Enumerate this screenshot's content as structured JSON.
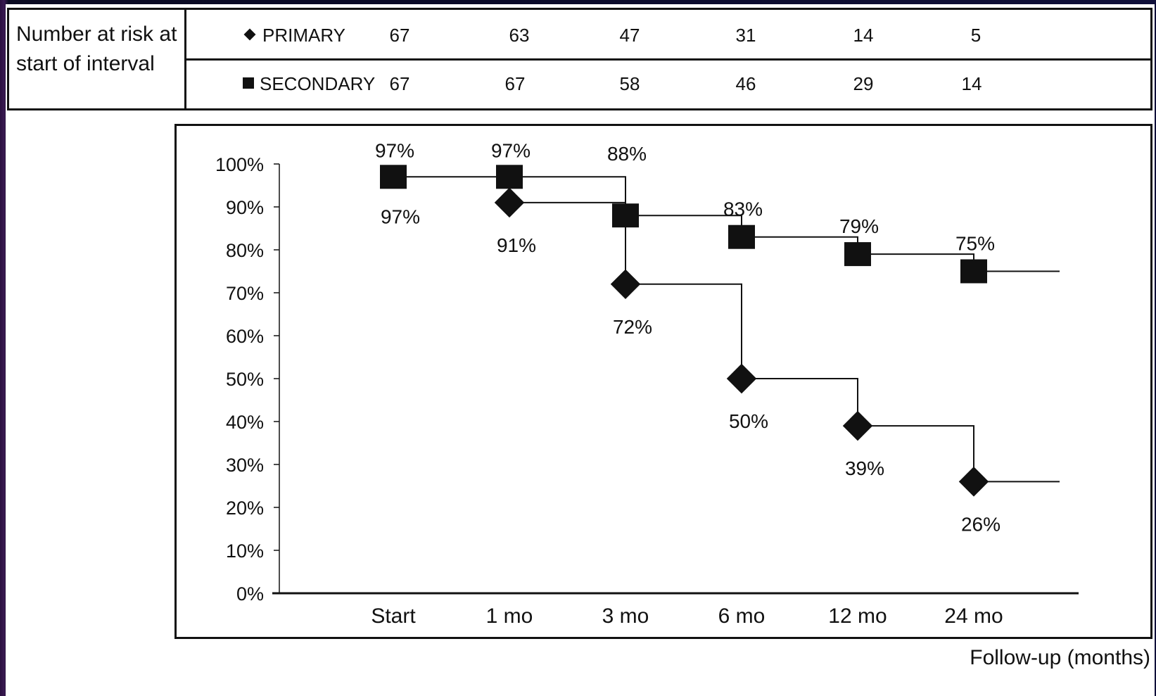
{
  "risk_table": {
    "label": "Number at risk at start of interval",
    "rows": [
      {
        "name": "PRIMARY",
        "marker": "diamond",
        "values": [
          "67",
          "63",
          "47",
          "31",
          "14",
          "5"
        ]
      },
      {
        "name": "SECONDARY",
        "marker": "square",
        "values": [
          "67",
          "67",
          "58",
          "46",
          "29",
          "14"
        ]
      }
    ]
  },
  "chart_data": {
    "type": "line",
    "step": true,
    "categories": [
      "Start",
      "1 mo",
      "3 mo",
      "6 mo",
      "12 mo",
      "24 mo"
    ],
    "xlabel": "Follow-up (months)",
    "ylabel": "",
    "ylim": [
      0,
      100
    ],
    "yticks": [
      "0%",
      "10%",
      "20%",
      "30%",
      "40%",
      "50%",
      "60%",
      "70%",
      "80%",
      "90%",
      "100%"
    ],
    "grid": false,
    "series": [
      {
        "name": "SECONDARY",
        "marker": "square",
        "values": [
          97,
          97,
          88,
          83,
          79,
          75
        ],
        "labels": [
          "97%",
          "97%",
          "88%",
          "83%",
          "79%",
          "75%"
        ]
      },
      {
        "name": "PRIMARY",
        "marker": "diamond",
        "values": [
          97,
          91,
          72,
          50,
          39,
          26
        ],
        "labels": [
          "97%",
          "91%",
          "72%",
          "50%",
          "39%",
          "26%"
        ]
      }
    ]
  },
  "colors": {
    "ink": "#111111",
    "background": "#ffffff",
    "frame": "#0a0a28"
  }
}
